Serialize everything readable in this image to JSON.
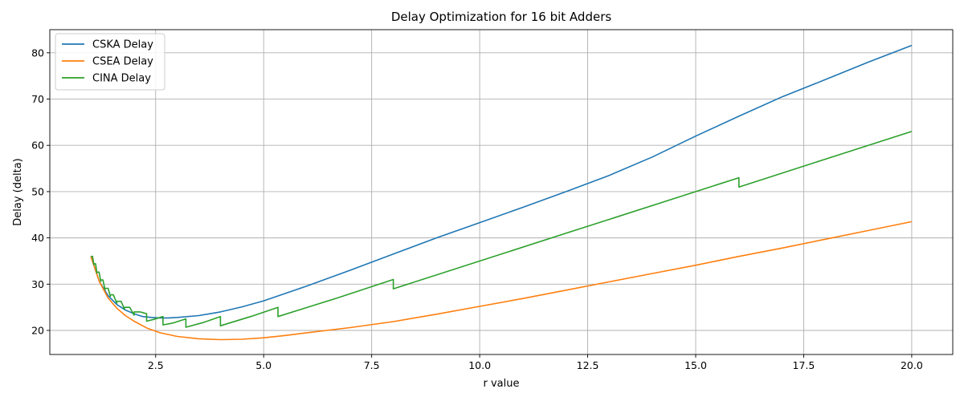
{
  "chart_data": {
    "type": "line",
    "title": "Delay Optimization for 16 bit Adders",
    "xlabel": "r value",
    "ylabel": "Delay (delta)",
    "xlim": [
      0.05,
      20.95
    ],
    "ylim": [
      14.8,
      85.0
    ],
    "xticks": [
      2.5,
      5.0,
      7.5,
      10.0,
      12.5,
      15.0,
      17.5,
      20.0
    ],
    "xtick_labels": [
      "2.5",
      "5.0",
      "7.5",
      "10.0",
      "12.5",
      "15.0",
      "17.5",
      "20.0"
    ],
    "yticks": [
      20,
      30,
      40,
      50,
      60,
      70,
      80
    ],
    "ytick_labels": [
      "20",
      "30",
      "40",
      "50",
      "60",
      "70",
      "80"
    ],
    "grid": true,
    "legend_position": "top-left",
    "series": [
      {
        "name": "CSKA Delay",
        "color": "#1f77b4",
        "x": [
          1.0,
          1.2,
          1.4,
          1.6,
          1.8,
          2.0,
          2.2,
          2.4,
          2.6,
          2.8,
          3.0,
          3.5,
          4.0,
          4.5,
          5.0,
          6.0,
          7.0,
          8.0,
          9.0,
          10.0,
          11.0,
          12.0,
          13.0,
          14.0,
          15.0,
          16.0,
          17.0,
          18.0,
          19.0,
          20.0
        ],
        "y": [
          36.0,
          30.5,
          27.5,
          25.6,
          24.4,
          23.6,
          23.0,
          22.8,
          22.7,
          22.7,
          22.8,
          23.2,
          24.0,
          25.1,
          26.4,
          29.6,
          33.0,
          36.5,
          40.0,
          43.3,
          46.6,
          50.0,
          53.5,
          57.5,
          62.0,
          66.3,
          70.5,
          74.2,
          78.0,
          81.6
        ]
      },
      {
        "name": "CSEA Delay",
        "color": "#ff7f0e",
        "x": [
          1.0,
          1.2,
          1.4,
          1.6,
          1.8,
          2.0,
          2.3,
          2.6,
          3.0,
          3.5,
          4.0,
          4.5,
          5.0,
          5.5,
          6.0,
          7.0,
          8.0,
          9.0,
          10.0,
          11.0,
          12.0,
          13.0,
          14.0,
          15.0,
          16.0,
          17.0,
          18.0,
          19.0,
          20.0
        ],
        "y": [
          36.0,
          30.5,
          27.0,
          24.8,
          23.2,
          22.0,
          20.5,
          19.5,
          18.7,
          18.2,
          18.0,
          18.1,
          18.4,
          18.9,
          19.5,
          20.6,
          21.9,
          23.5,
          25.2,
          26.9,
          28.7,
          30.5,
          32.3,
          34.1,
          36.0,
          37.8,
          39.7,
          41.6,
          43.5
        ]
      },
      {
        "name": "CINA Delay",
        "color": "#2ca02c",
        "x": [
          1.0,
          1.04,
          1.07,
          1.07,
          1.11,
          1.14,
          1.14,
          1.19,
          1.23,
          1.23,
          1.28,
          1.33,
          1.33,
          1.4,
          1.45,
          1.45,
          1.52,
          1.6,
          1.6,
          1.7,
          1.78,
          1.78,
          1.9,
          2.0,
          2.0,
          2.14,
          2.29,
          2.29,
          2.46,
          2.67,
          2.67,
          2.9,
          3.2,
          3.2,
          3.6,
          4.0,
          4.0,
          4.7,
          5.33,
          5.33,
          6.7,
          8.0,
          8.0,
          12.0,
          16.0,
          16.0,
          18.0,
          20.0
        ],
        "y": [
          36.0,
          36.0,
          34.2,
          34.4,
          34.4,
          32.4,
          32.6,
          32.6,
          30.6,
          30.9,
          30.9,
          28.8,
          29.1,
          29.1,
          27.4,
          27.7,
          27.7,
          25.9,
          26.3,
          26.3,
          24.6,
          25.0,
          25.0,
          23.3,
          24.0,
          24.0,
          23.6,
          22.0,
          22.4,
          23.0,
          21.2,
          21.6,
          22.5,
          20.7,
          21.7,
          23.0,
          21.0,
          23.0,
          25.0,
          23.0,
          27.0,
          31.0,
          29.0,
          41.0,
          53.0,
          51.0,
          57.0,
          63.0
        ]
      }
    ]
  }
}
